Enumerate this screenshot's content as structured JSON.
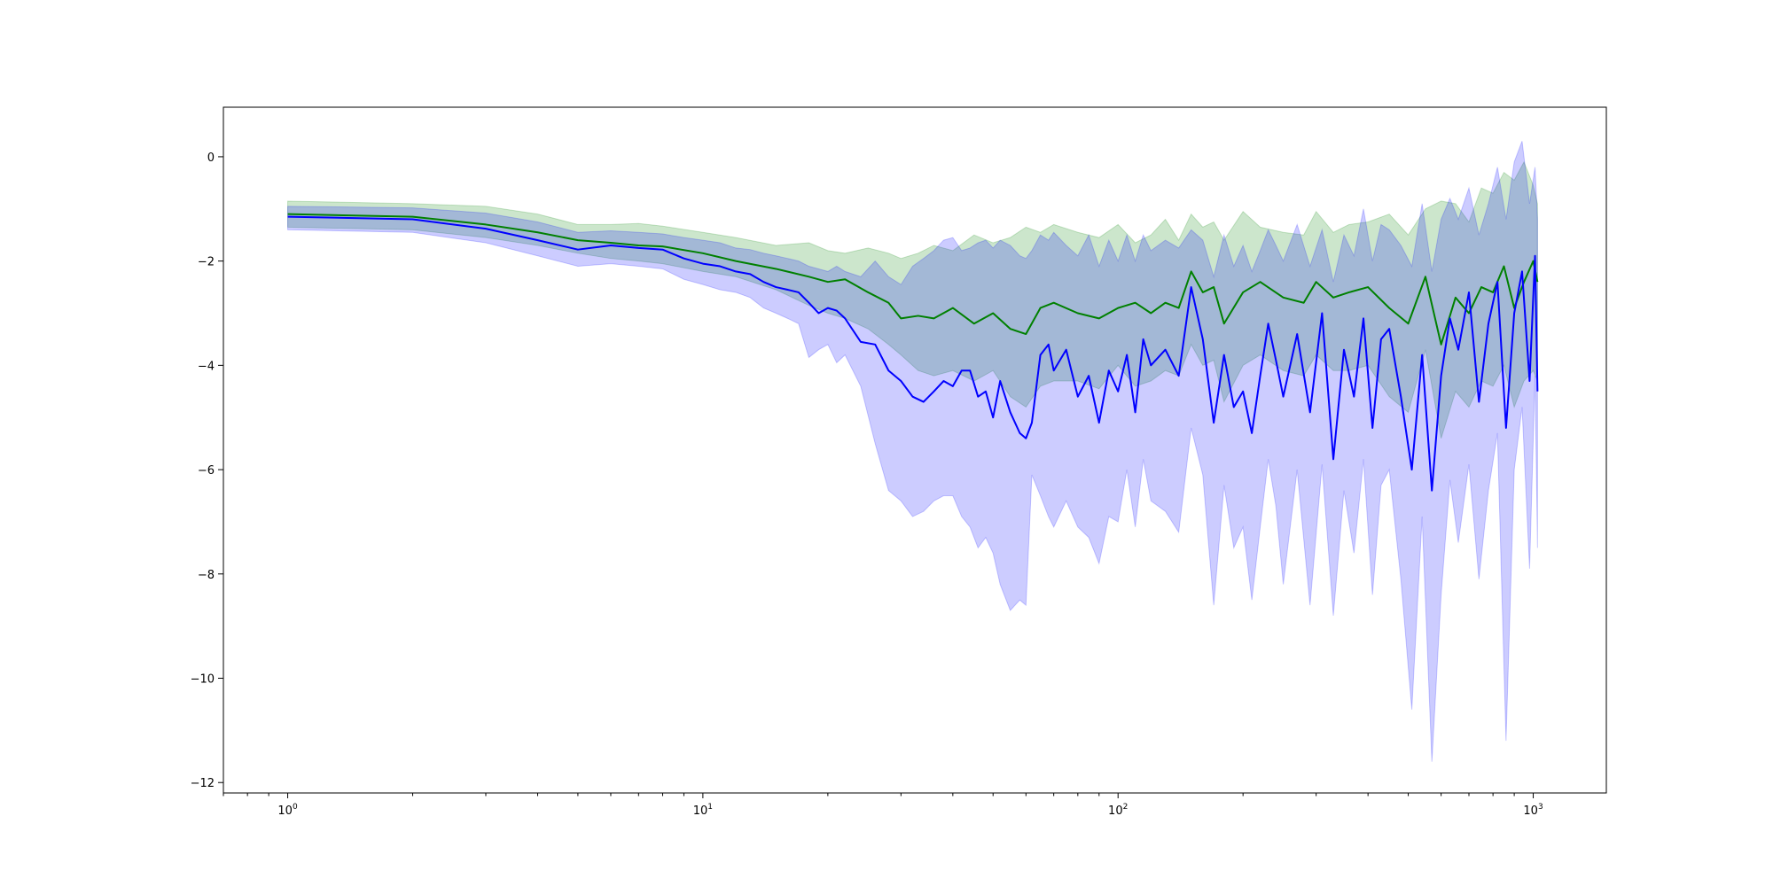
{
  "chart_data": {
    "type": "line",
    "title": "",
    "xlabel": "",
    "ylabel": "",
    "xscale": "log",
    "xlim": [
      0.7,
      1500
    ],
    "ylim": [
      -12.2,
      0.95
    ],
    "grid": false,
    "legend": "none",
    "x_ticks": [
      {
        "value": 1,
        "base": "10",
        "exp": "0"
      },
      {
        "value": 10,
        "base": "10",
        "exp": "1"
      },
      {
        "value": 100,
        "base": "10",
        "exp": "2"
      },
      {
        "value": 1000,
        "base": "10",
        "exp": "3"
      }
    ],
    "y_ticks": [
      {
        "value": 0,
        "label": "0"
      },
      {
        "value": -2,
        "label": "−2"
      },
      {
        "value": -4,
        "label": "−4"
      },
      {
        "value": -6,
        "label": "−6"
      },
      {
        "value": -8,
        "label": "−8"
      },
      {
        "value": -10,
        "label": "−10"
      },
      {
        "value": -12,
        "label": "−12"
      }
    ],
    "series": [
      {
        "color": "#008000",
        "band_color": "#008000",
        "band_opacity": 0.2,
        "x": [
          1,
          2,
          3,
          4,
          5,
          6,
          7,
          8,
          10,
          12,
          15,
          18,
          20,
          22,
          25,
          28,
          30,
          33,
          36,
          40,
          45,
          50,
          55,
          60,
          65,
          70,
          80,
          90,
          100,
          110,
          120,
          130,
          140,
          150,
          160,
          170,
          180,
          200,
          220,
          250,
          280,
          300,
          330,
          360,
          400,
          450,
          500,
          550,
          600,
          650,
          700,
          750,
          800,
          850,
          900,
          950,
          1000,
          1024
        ],
        "mean": [
          -1.1,
          -1.15,
          -1.3,
          -1.45,
          -1.6,
          -1.65,
          -1.7,
          -1.72,
          -1.85,
          -2.0,
          -2.15,
          -2.3,
          -2.4,
          -2.35,
          -2.6,
          -2.8,
          -3.1,
          -3.05,
          -3.1,
          -2.9,
          -3.2,
          -3.0,
          -3.3,
          -3.4,
          -2.9,
          -2.8,
          -3.0,
          -3.1,
          -2.9,
          -2.8,
          -3.0,
          -2.8,
          -2.9,
          -2.2,
          -2.6,
          -2.5,
          -3.2,
          -2.6,
          -2.4,
          -2.7,
          -2.8,
          -2.4,
          -2.7,
          -2.6,
          -2.5,
          -2.9,
          -3.2,
          -2.3,
          -3.6,
          -2.7,
          -3.0,
          -2.5,
          -2.6,
          -2.1,
          -2.9,
          -2.4,
          -2.0,
          -2.4
        ],
        "upper": [
          -0.85,
          -0.9,
          -0.95,
          -1.1,
          -1.3,
          -1.3,
          -1.28,
          -1.33,
          -1.45,
          -1.55,
          -1.7,
          -1.65,
          -1.8,
          -1.85,
          -1.75,
          -1.85,
          -1.95,
          -1.85,
          -1.7,
          -1.8,
          -1.5,
          -1.65,
          -1.55,
          -1.35,
          -1.45,
          -1.3,
          -1.45,
          -1.55,
          -1.3,
          -1.65,
          -1.5,
          -1.2,
          -1.6,
          -1.1,
          -1.35,
          -1.25,
          -1.6,
          -1.05,
          -1.35,
          -1.45,
          -1.5,
          -1.05,
          -1.45,
          -1.3,
          -1.25,
          -1.1,
          -1.5,
          -1.0,
          -0.85,
          -0.9,
          -1.25,
          -0.6,
          -0.7,
          -0.3,
          -0.45,
          -0.1,
          -0.55,
          -0.9
        ],
        "lower": [
          -1.35,
          -1.4,
          -1.55,
          -1.7,
          -1.85,
          -1.95,
          -2.0,
          -2.05,
          -2.2,
          -2.3,
          -2.55,
          -2.85,
          -3.0,
          -3.1,
          -3.3,
          -3.6,
          -3.8,
          -4.1,
          -4.2,
          -4.1,
          -4.3,
          -4.1,
          -4.6,
          -4.8,
          -4.4,
          -4.3,
          -4.3,
          -4.45,
          -4.0,
          -4.4,
          -4.3,
          -4.1,
          -4.2,
          -3.6,
          -4.0,
          -3.9,
          -4.7,
          -4.0,
          -3.8,
          -4.1,
          -4.2,
          -3.8,
          -4.1,
          -4.1,
          -4.0,
          -4.6,
          -4.9,
          -3.7,
          -5.4,
          -4.5,
          -4.8,
          -4.3,
          -4.4,
          -4.0,
          -4.8,
          -4.3,
          -4.1,
          -4.3
        ]
      },
      {
        "color": "#0000ff",
        "band_color": "#0000ff",
        "band_opacity": 0.2,
        "x": [
          1,
          2,
          3,
          4,
          5,
          6,
          7,
          8,
          9,
          10,
          11,
          12,
          13,
          14,
          15,
          16,
          17,
          18,
          19,
          20,
          21,
          22,
          24,
          26,
          28,
          30,
          32,
          34,
          36,
          38,
          40,
          42,
          44,
          46,
          48,
          50,
          52,
          55,
          58,
          60,
          62,
          65,
          68,
          70,
          75,
          80,
          85,
          90,
          95,
          100,
          105,
          110,
          115,
          120,
          130,
          140,
          150,
          160,
          170,
          180,
          190,
          200,
          210,
          220,
          230,
          240,
          250,
          270,
          290,
          310,
          330,
          350,
          370,
          390,
          410,
          430,
          450,
          480,
          510,
          540,
          570,
          600,
          630,
          660,
          700,
          740,
          780,
          820,
          860,
          900,
          940,
          980,
          1010,
          1024
        ],
        "mean": [
          -1.15,
          -1.2,
          -1.38,
          -1.6,
          -1.78,
          -1.7,
          -1.75,
          -1.78,
          -1.95,
          -2.05,
          -2.1,
          -2.2,
          -2.25,
          -2.4,
          -2.5,
          -2.55,
          -2.6,
          -2.8,
          -3.0,
          -2.9,
          -2.95,
          -3.1,
          -3.55,
          -3.6,
          -4.1,
          -4.3,
          -4.6,
          -4.7,
          -4.5,
          -4.3,
          -4.4,
          -4.1,
          -4.1,
          -4.6,
          -4.5,
          -5.0,
          -4.3,
          -4.9,
          -5.3,
          -5.4,
          -5.1,
          -3.8,
          -3.6,
          -4.1,
          -3.7,
          -4.6,
          -4.2,
          -5.1,
          -4.1,
          -4.5,
          -3.8,
          -4.9,
          -3.5,
          -4.0,
          -3.7,
          -4.2,
          -2.5,
          -3.5,
          -5.1,
          -3.8,
          -4.8,
          -4.5,
          -5.3,
          -4.2,
          -3.2,
          -3.9,
          -4.6,
          -3.4,
          -4.9,
          -3.0,
          -5.8,
          -3.7,
          -4.6,
          -3.1,
          -5.2,
          -3.5,
          -3.3,
          -4.6,
          -6.0,
          -3.8,
          -6.4,
          -4.2,
          -3.1,
          -3.7,
          -2.6,
          -4.7,
          -3.2,
          -2.4,
          -5.2,
          -3.0,
          -2.2,
          -4.3,
          -1.9,
          -4.5
        ],
        "upper": [
          -0.95,
          -0.98,
          -1.08,
          -1.25,
          -1.45,
          -1.42,
          -1.45,
          -1.48,
          -1.55,
          -1.6,
          -1.65,
          -1.75,
          -1.78,
          -1.85,
          -1.9,
          -1.95,
          -2.0,
          -2.1,
          -2.15,
          -2.2,
          -2.1,
          -2.2,
          -2.3,
          -2.0,
          -2.3,
          -2.45,
          -2.1,
          -1.95,
          -1.8,
          -1.6,
          -1.55,
          -1.8,
          -1.75,
          -1.65,
          -1.6,
          -1.75,
          -1.6,
          -1.7,
          -1.9,
          -1.95,
          -1.8,
          -1.5,
          -1.6,
          -1.45,
          -1.7,
          -1.9,
          -1.5,
          -2.1,
          -1.6,
          -2.0,
          -1.5,
          -2.0,
          -1.5,
          -1.8,
          -1.6,
          -1.75,
          -1.4,
          -1.6,
          -2.3,
          -1.5,
          -2.1,
          -1.7,
          -2.2,
          -1.8,
          -1.4,
          -1.7,
          -2.0,
          -1.3,
          -2.1,
          -1.4,
          -2.4,
          -1.5,
          -1.9,
          -1.0,
          -2.0,
          -1.3,
          -1.4,
          -1.7,
          -2.1,
          -0.9,
          -2.2,
          -1.2,
          -0.8,
          -1.2,
          -0.6,
          -1.5,
          -0.9,
          -0.2,
          -1.2,
          -0.1,
          0.3,
          -0.9,
          -0.2,
          -1.2
        ],
        "lower": [
          -1.4,
          -1.45,
          -1.65,
          -1.9,
          -2.1,
          -2.05,
          -2.1,
          -2.15,
          -2.35,
          -2.45,
          -2.55,
          -2.6,
          -2.7,
          -2.9,
          -3.0,
          -3.1,
          -3.2,
          -3.85,
          -3.7,
          -3.6,
          -3.95,
          -3.8,
          -4.4,
          -5.5,
          -6.4,
          -6.6,
          -6.9,
          -6.8,
          -6.6,
          -6.5,
          -6.5,
          -6.9,
          -7.1,
          -7.5,
          -7.3,
          -7.6,
          -8.2,
          -8.7,
          -8.5,
          -8.6,
          -6.1,
          -6.5,
          -6.9,
          -7.1,
          -6.6,
          -7.1,
          -7.3,
          -7.8,
          -6.9,
          -7.0,
          -6.0,
          -7.1,
          -5.8,
          -6.6,
          -6.8,
          -7.2,
          -5.2,
          -6.1,
          -8.6,
          -6.3,
          -7.5,
          -7.1,
          -8.5,
          -7.1,
          -5.8,
          -6.7,
          -8.2,
          -6.0,
          -8.6,
          -5.9,
          -8.8,
          -6.4,
          -7.6,
          -5.8,
          -8.4,
          -6.3,
          -6.0,
          -8.1,
          -10.6,
          -6.9,
          -11.6,
          -8.4,
          -6.2,
          -7.4,
          -5.9,
          -8.1,
          -6.4,
          -5.3,
          -11.2,
          -6.0,
          -4.8,
          -7.9,
          -4.2,
          -7.5
        ]
      }
    ]
  }
}
